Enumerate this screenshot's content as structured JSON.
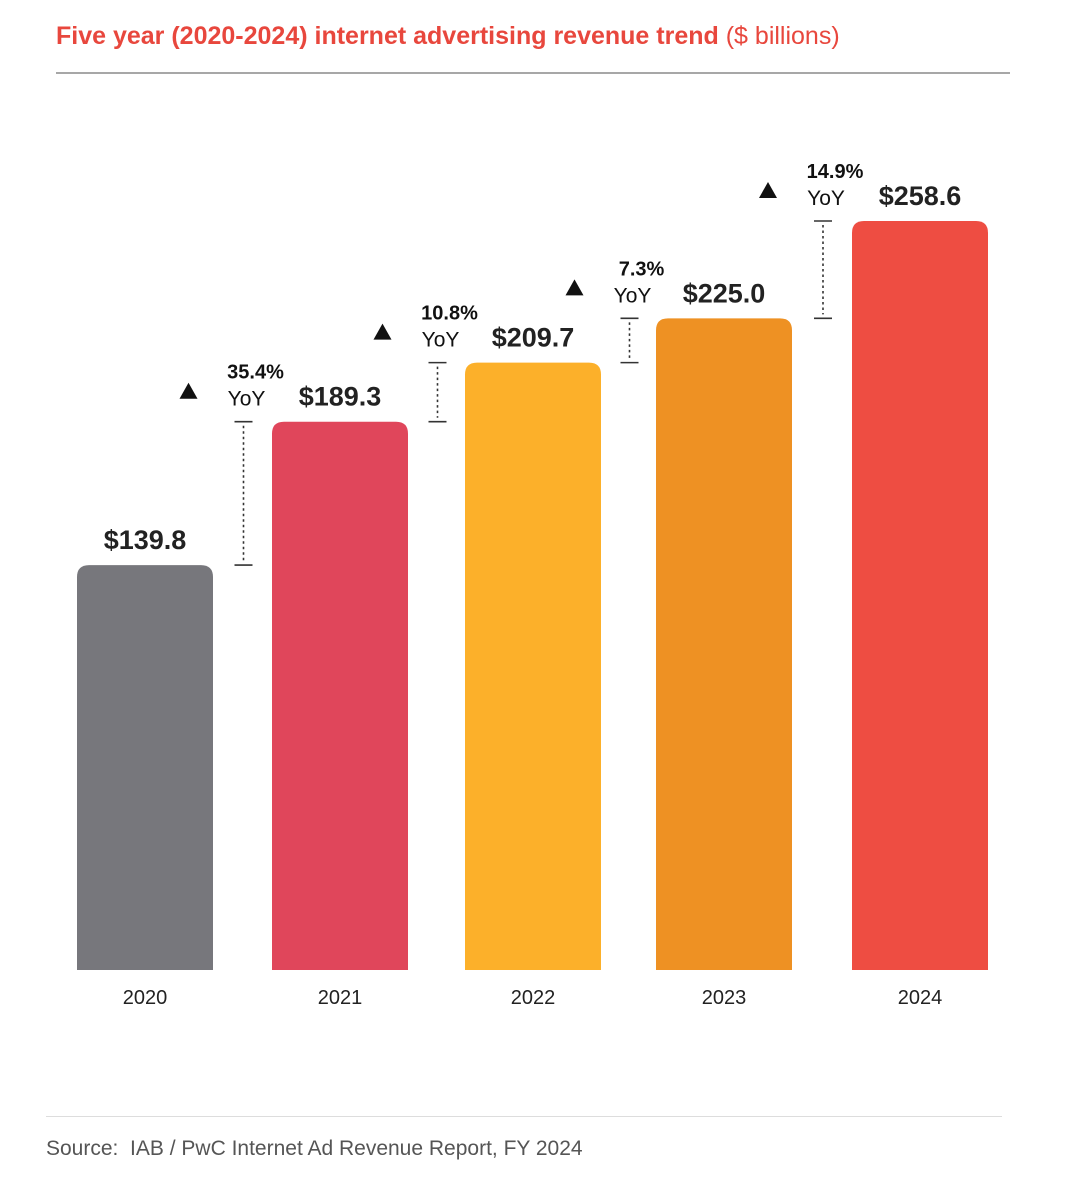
{
  "title": {
    "bold": "Five year (2020-2024) internet advertising revenue trend",
    "light": "($ billions)"
  },
  "source": "Source:  IAB / PwC Internet Ad Revenue Report, FY 2024",
  "chart_data": {
    "type": "bar",
    "title": "Five year (2020-2024) internet advertising revenue trend ($ billions)",
    "categories": [
      "2020",
      "2021",
      "2022",
      "2023",
      "2024"
    ],
    "values": [
      139.8,
      189.3,
      209.7,
      225.0,
      258.6
    ],
    "value_labels": [
      "$139.8",
      "$189.3",
      "$209.7",
      "$225.0",
      "$258.6"
    ],
    "colors": [
      "#77777c",
      "#e0465b",
      "#fcb02a",
      "#ee9123",
      "#ee4d42"
    ],
    "ylim": [
      0,
      258.6
    ],
    "xlabel": "",
    "ylabel": "",
    "grid": false,
    "yoy": [
      {
        "from": "2020",
        "to": "2021",
        "pct": "35.4%",
        "label": "YoY",
        "arrow": "▲"
      },
      {
        "from": "2021",
        "to": "2022",
        "pct": "10.8%",
        "label": "YoY",
        "arrow": "▲"
      },
      {
        "from": "2022",
        "to": "2023",
        "pct": "7.3%",
        "label": "YoY",
        "arrow": "▲"
      },
      {
        "from": "2023",
        "to": "2024",
        "pct": "14.9%",
        "label": "YoY",
        "arrow": "▲"
      }
    ]
  }
}
